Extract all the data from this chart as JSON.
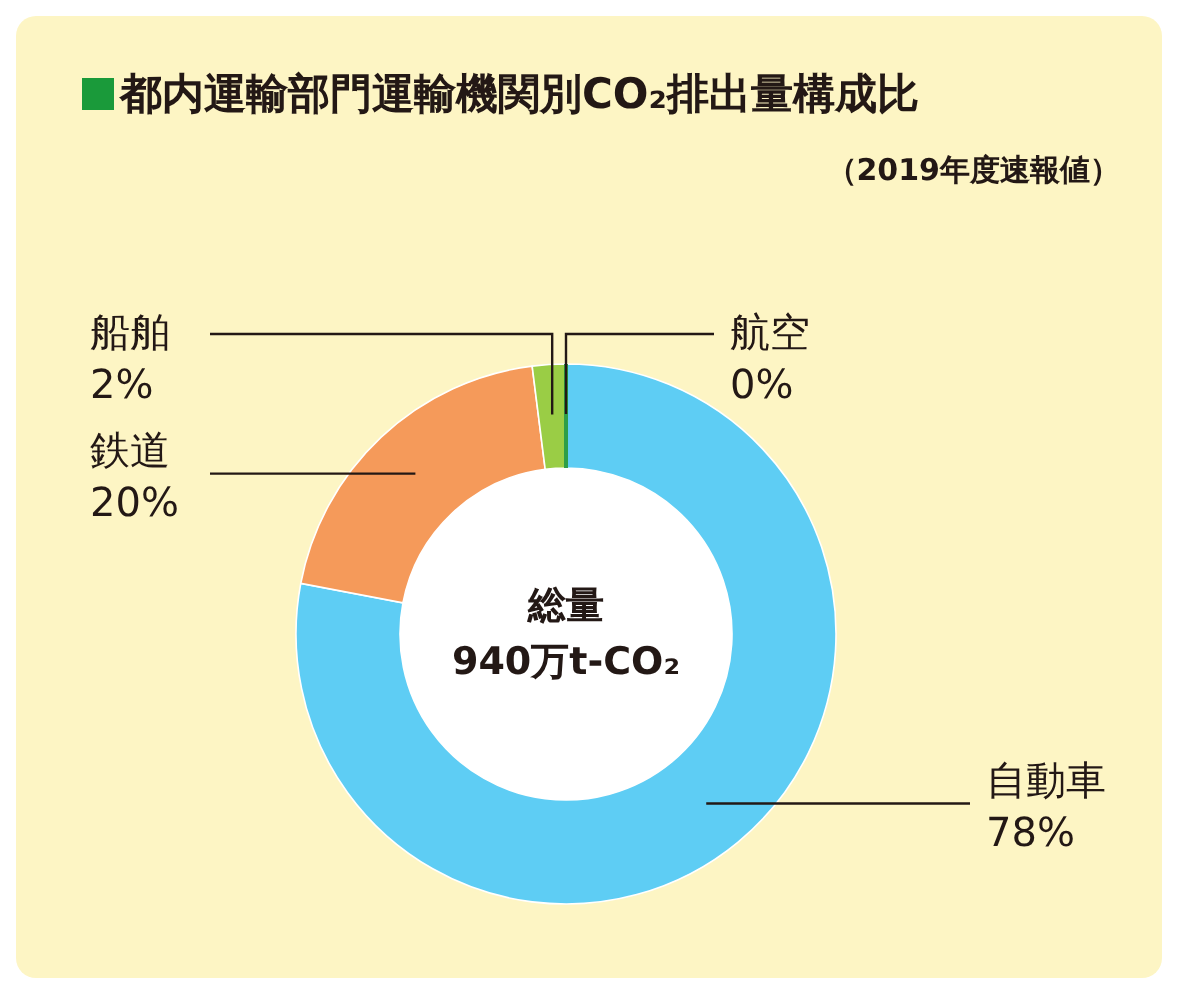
{
  "chart_data": {
    "type": "donut",
    "title": "都内運輸部門運輸機関別CO₂排出量構成比",
    "subtitle": "（2019年度速報値）",
    "categories": [
      "自動車",
      "鉄道",
      "船舶",
      "航空"
    ],
    "values": [
      78,
      20,
      2,
      0
    ],
    "colors": [
      "#5ecdf4",
      "#f59a5a",
      "#9acd45",
      "#2e9e47"
    ],
    "value_labels": [
      "78%",
      "20%",
      "2%",
      "0%"
    ],
    "annotations": [
      "総量",
      "940万t-CO₂"
    ]
  }
}
